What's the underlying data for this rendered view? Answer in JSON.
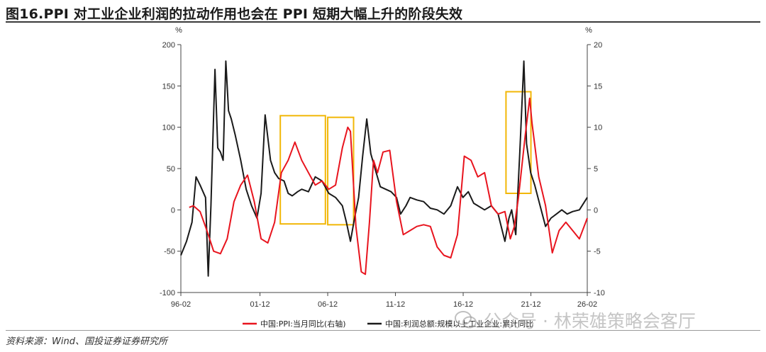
{
  "title": "图16.PPI 对工业企业利润的拉动作用也会在 PPI 短期大幅上升的阶段失效",
  "source": "资料来源：Wind、国投证券证券研究所",
  "watermark": "公众号 · 林荣雄策略会客厅",
  "colors": {
    "ppi": "#e8141e",
    "profit": "#1a1a1a",
    "highlight": "#f2b707",
    "axis": "#444444"
  },
  "chart_data": {
    "type": "line",
    "left_axis": {
      "unit": "%",
      "ylim": [
        -100,
        200
      ],
      "ticks": [
        "-100",
        "-50",
        "0",
        "50",
        "100",
        "150",
        "200"
      ]
    },
    "right_axis": {
      "unit": "%",
      "ylim": [
        -10,
        20
      ],
      "ticks": [
        "-10",
        "-5",
        "0",
        "5",
        "10",
        "15",
        "20"
      ]
    },
    "x_ticks": [
      "96-02",
      "01-12",
      "06-12",
      "11-12",
      "16-12",
      "21-12",
      "26-02"
    ],
    "x_tick_values": [
      1996.08,
      2001.92,
      2006.92,
      2011.92,
      2016.92,
      2021.92,
      2026.08
    ],
    "xlim": [
      1996.08,
      2026.08
    ],
    "series": [
      {
        "name": "中国:PPI:当月同比(右轴)",
        "axis": "right",
        "color": "#e8141e",
        "x": [
          1996.7,
          1997.0,
          1997.5,
          1998.0,
          1998.5,
          1999.0,
          1999.5,
          2000.0,
          2000.5,
          2001.0,
          2001.5,
          2002.0,
          2002.5,
          2003.0,
          2003.5,
          2004.0,
          2004.5,
          2005.0,
          2005.5,
          2006.0,
          2006.5,
          2007.0,
          2007.5,
          2008.0,
          2008.4,
          2008.6,
          2009.0,
          2009.4,
          2009.7,
          2010.0,
          2010.3,
          2010.6,
          2011.0,
          2011.5,
          2012.0,
          2012.5,
          2013.0,
          2013.5,
          2014.0,
          2014.5,
          2015.0,
          2015.5,
          2016.0,
          2016.5,
          2017.0,
          2017.5,
          2018.0,
          2018.5,
          2019.0,
          2019.5,
          2020.0,
          2020.4,
          2020.7,
          2021.0,
          2021.5,
          2021.83,
          2022.0,
          2022.5,
          2023.0,
          2023.5,
          2024.0,
          2024.5,
          2025.0,
          2025.5,
          2026.08
        ],
        "y": [
          0.3,
          0.5,
          -0.2,
          -2.5,
          -5.0,
          -5.3,
          -3.5,
          1.0,
          3.0,
          4.2,
          1.0,
          -3.5,
          -4.0,
          -1.5,
          4.5,
          6.0,
          8.2,
          6.0,
          4.5,
          3.0,
          3.5,
          2.5,
          3.0,
          7.5,
          10.0,
          9.5,
          -2.0,
          -7.5,
          -7.8,
          -1.5,
          6.0,
          4.5,
          7.0,
          7.2,
          1.0,
          -3.0,
          -2.5,
          -2.0,
          -1.8,
          -2.0,
          -4.5,
          -5.5,
          -5.8,
          -3.0,
          6.5,
          6.0,
          4.0,
          4.5,
          0.5,
          -0.5,
          -0.2,
          -3.5,
          -2.0,
          1.5,
          9.0,
          13.5,
          10.5,
          4.0,
          0.5,
          -5.2,
          -2.5,
          -1.5,
          -2.5,
          -3.5,
          -1.0
        ]
      },
      {
        "name": "中国:利润总额:规模以上工业企业:累计同比",
        "axis": "left",
        "color": "#1a1a1a",
        "x": [
          1996.08,
          1996.5,
          1996.9,
          1997.2,
          1997.5,
          1997.9,
          1998.1,
          1998.3,
          1998.6,
          1998.8,
          1999.0,
          1999.2,
          1999.4,
          1999.6,
          1999.8,
          2000.1,
          2000.5,
          2000.9,
          2001.3,
          2001.7,
          2002.0,
          2002.3,
          2002.7,
          2003.0,
          2003.3,
          2003.7,
          2004.0,
          2004.3,
          2004.7,
          2005.0,
          2005.5,
          2006.0,
          2006.5,
          2007.0,
          2007.5,
          2008.0,
          2008.3,
          2008.6,
          2008.9,
          2009.2,
          2009.5,
          2009.8,
          2010.1,
          2010.5,
          2010.8,
          2011.2,
          2011.6,
          2012.0,
          2012.3,
          2012.7,
          2013.0,
          2013.5,
          2014.0,
          2014.5,
          2015.0,
          2015.5,
          2016.0,
          2016.5,
          2016.9,
          2017.3,
          2017.7,
          2018.0,
          2018.5,
          2019.0,
          2019.5,
          2020.0,
          2020.3,
          2020.5,
          2020.8,
          2021.1,
          2021.4,
          2021.6,
          2021.9,
          2022.2,
          2022.6,
          2023.0,
          2023.4,
          2023.8,
          2024.2,
          2024.6,
          2025.0,
          2025.5,
          2026.08
        ],
        "y": [
          -55,
          -38,
          -15,
          40,
          30,
          15,
          -80,
          5,
          170,
          75,
          70,
          60,
          180,
          120,
          110,
          90,
          60,
          25,
          5,
          -10,
          20,
          115,
          60,
          45,
          38,
          35,
          20,
          17,
          22,
          25,
          22,
          40,
          35,
          20,
          15,
          5,
          -15,
          -38,
          -10,
          15,
          65,
          110,
          68,
          45,
          28,
          25,
          22,
          15,
          -5,
          5,
          15,
          12,
          10,
          2,
          0,
          -5,
          5,
          28,
          15,
          22,
          8,
          5,
          0,
          5,
          -5,
          -38,
          -10,
          0,
          -30,
          70,
          180,
          80,
          45,
          30,
          5,
          -20,
          -10,
          -5,
          0,
          -5,
          -2,
          0,
          15
        ]
      }
    ],
    "highlights": [
      {
        "x": [
          2003.42,
          2006.75
        ],
        "y": [
          114,
          -17
        ]
      },
      {
        "x": [
          2006.92,
          2008.83
        ],
        "y": [
          112,
          -18
        ]
      },
      {
        "x": [
          2020.08,
          2021.92
        ],
        "y": [
          143,
          20
        ]
      }
    ]
  }
}
